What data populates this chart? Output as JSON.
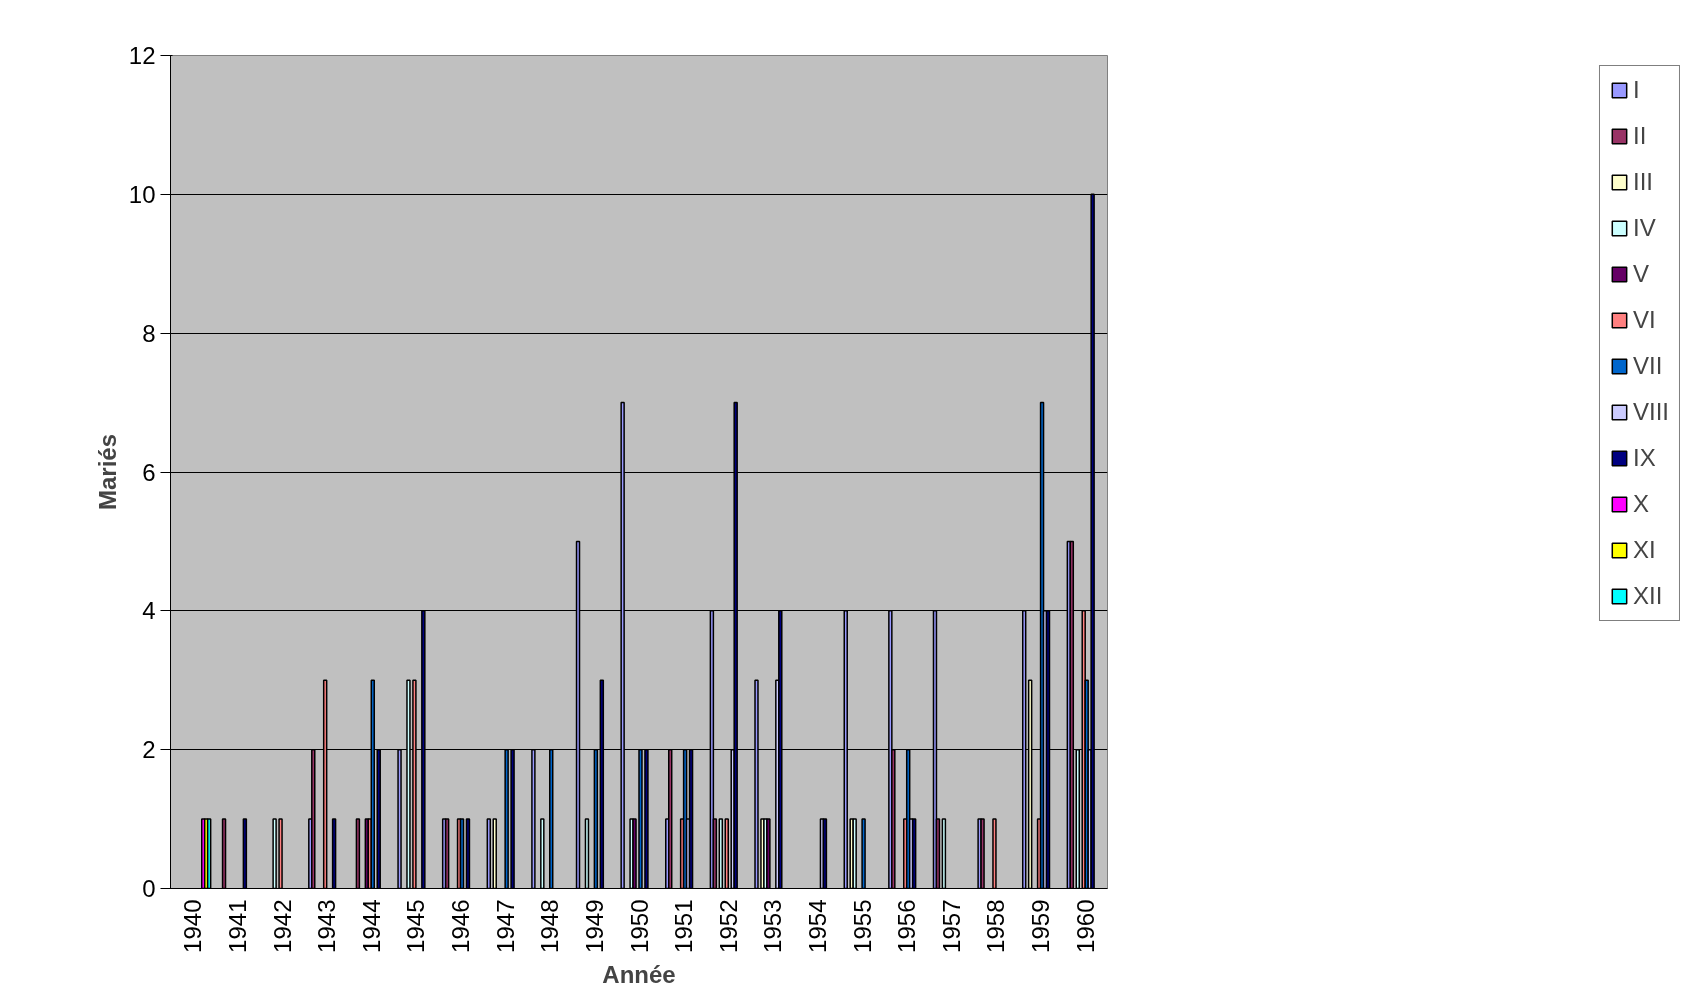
{
  "chart_data": {
    "type": "bar",
    "xlabel": "Année",
    "ylabel": "Mariés",
    "categories": [
      "1940",
      "1941",
      "1942",
      "1943",
      "1944",
      "1945",
      "1946",
      "1947",
      "1948",
      "1949",
      "1950",
      "1951",
      "1952",
      "1953",
      "1954",
      "1955",
      "1956",
      "1957",
      "1958",
      "1959",
      "1960"
    ],
    "ylim": [
      0,
      12
    ],
    "yticks": [
      0,
      2,
      4,
      6,
      8,
      10,
      12
    ],
    "grid": "y",
    "legend": "right",
    "series": [
      {
        "name": "I",
        "color": "#9999ff",
        "values": [
          null,
          null,
          null,
          1,
          null,
          2,
          1,
          1,
          2,
          5,
          7,
          1,
          4,
          3,
          null,
          4,
          4,
          4,
          1,
          4,
          5
        ]
      },
      {
        "name": "II",
        "color": "#993366",
        "values": [
          null,
          1,
          null,
          2,
          1,
          null,
          1,
          null,
          null,
          null,
          null,
          2,
          1,
          null,
          null,
          null,
          2,
          1,
          1,
          null,
          5
        ]
      },
      {
        "name": "III",
        "color": "#ffffcc",
        "values": [
          null,
          null,
          null,
          null,
          null,
          null,
          null,
          1,
          null,
          null,
          null,
          null,
          null,
          1,
          null,
          1,
          null,
          null,
          null,
          3,
          null
        ]
      },
      {
        "name": "IV",
        "color": "#ccffff",
        "values": [
          null,
          null,
          1,
          null,
          null,
          3,
          null,
          null,
          1,
          1,
          1,
          null,
          1,
          1,
          null,
          1,
          null,
          1,
          null,
          null,
          2
        ]
      },
      {
        "name": "V",
        "color": "#660066",
        "values": [
          null,
          null,
          null,
          null,
          1,
          null,
          null,
          null,
          null,
          null,
          1,
          null,
          null,
          1,
          null,
          null,
          null,
          null,
          null,
          null,
          null
        ]
      },
      {
        "name": "VI",
        "color": "#ff8080",
        "values": [
          null,
          null,
          1,
          3,
          1,
          3,
          1,
          null,
          null,
          null,
          null,
          1,
          1,
          null,
          null,
          null,
          1,
          null,
          1,
          1,
          4
        ]
      },
      {
        "name": "VII",
        "color": "#0066cc",
        "values": [
          null,
          null,
          null,
          null,
          3,
          null,
          1,
          2,
          2,
          2,
          2,
          2,
          null,
          null,
          null,
          1,
          2,
          null,
          null,
          7,
          3
        ]
      },
      {
        "name": "VIII",
        "color": "#ccccff",
        "values": [
          null,
          null,
          null,
          null,
          null,
          null,
          null,
          null,
          null,
          null,
          null,
          1,
          2,
          3,
          1,
          null,
          1,
          null,
          null,
          4,
          2
        ]
      },
      {
        "name": "IX",
        "color": "#000080",
        "values": [
          null,
          1,
          null,
          1,
          2,
          4,
          1,
          2,
          null,
          3,
          2,
          2,
          7,
          4,
          1,
          null,
          1,
          null,
          null,
          4,
          10
        ]
      },
      {
        "name": "X",
        "color": "#ff00ff",
        "values": [
          1,
          null,
          null,
          null,
          null,
          null,
          null,
          null,
          null,
          null,
          null,
          null,
          null,
          null,
          null,
          null,
          null,
          null,
          null,
          null,
          null
        ]
      },
      {
        "name": "XI",
        "color": "#ffff00",
        "values": [
          1,
          null,
          null,
          null,
          null,
          null,
          null,
          null,
          null,
          null,
          null,
          null,
          null,
          null,
          null,
          null,
          null,
          null,
          null,
          null,
          null
        ]
      },
      {
        "name": "XII",
        "color": "#00ffff",
        "values": [
          1,
          null,
          null,
          null,
          null,
          null,
          null,
          null,
          null,
          null,
          null,
          null,
          null,
          null,
          null,
          null,
          null,
          null,
          null,
          null,
          null
        ]
      }
    ]
  }
}
